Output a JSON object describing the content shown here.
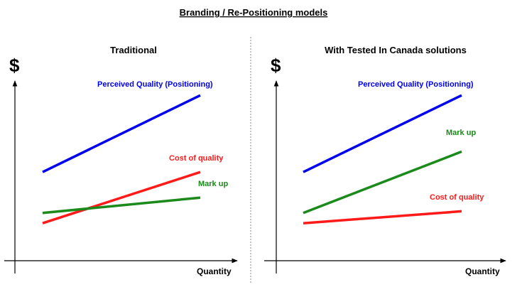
{
  "title": "Branding / Re-Positioning models",
  "colors": {
    "blue": "#0000ee",
    "red": "#ff1a1a",
    "green": "#1a8a1a",
    "axis": "#000000"
  },
  "panels": [
    {
      "title": "Traditional",
      "y_axis_symbol": "$",
      "x_axis_label": "Quantity",
      "chart_data": {
        "type": "line",
        "xlabel": "Quantity",
        "ylabel": "$",
        "series": [
          {
            "name": "Perceived Quality (Positioning)",
            "color": "blue",
            "x": [
              0,
              1
            ],
            "y": [
              0.52,
              0.97
            ]
          },
          {
            "name": "Cost of quality",
            "color": "red",
            "x": [
              0,
              1
            ],
            "y": [
              0.22,
              0.52
            ]
          },
          {
            "name": "Mark up",
            "color": "green",
            "x": [
              0,
              1
            ],
            "y": [
              0.28,
              0.37
            ]
          }
        ]
      }
    },
    {
      "title": "With Tested In Canada solutions",
      "y_axis_symbol": "$",
      "x_axis_label": "Quantity",
      "chart_data": {
        "type": "line",
        "xlabel": "Quantity",
        "ylabel": "$",
        "series": [
          {
            "name": "Perceived Quality (Positioning)",
            "color": "blue",
            "x": [
              0,
              1
            ],
            "y": [
              0.52,
              0.97
            ]
          },
          {
            "name": "Mark up",
            "color": "green",
            "x": [
              0,
              1
            ],
            "y": [
              0.28,
              0.64
            ]
          },
          {
            "name": "Cost of quality",
            "color": "red",
            "x": [
              0,
              1
            ],
            "y": [
              0.22,
              0.29
            ]
          }
        ]
      }
    }
  ]
}
